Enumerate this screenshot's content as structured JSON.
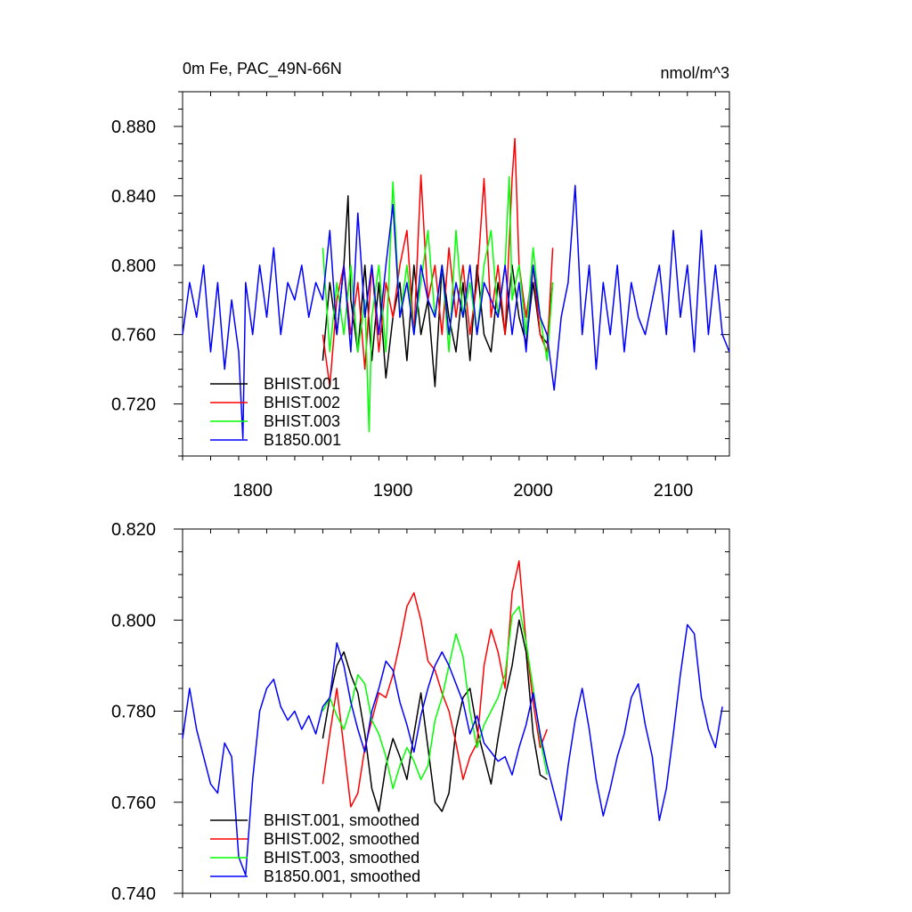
{
  "chart_data": [
    {
      "type": "line",
      "title": "0m Fe, PAC_49N-66N",
      "units": "nmol/m^3",
      "xlabel": "",
      "ylabel": "",
      "xlim": [
        1750,
        2140
      ],
      "ylim": [
        0.69,
        0.9
      ],
      "x_ticks": [
        1800,
        1900,
        2000,
        2100
      ],
      "y_ticks": [
        0.72,
        0.76,
        0.8,
        0.84,
        0.88
      ],
      "y_tick_labels": [
        "0.720",
        "0.760",
        "0.800",
        "0.840",
        "0.880"
      ],
      "legend_position": "bottom-left",
      "series": [
        {
          "name": "BHIST.001",
          "color": "#000000",
          "x": [
            1850,
            1855,
            1860,
            1865,
            1868,
            1870,
            1875,
            1880,
            1885,
            1890,
            1895,
            1900,
            1905,
            1910,
            1915,
            1920,
            1925,
            1930,
            1935,
            1940,
            1945,
            1950,
            1955,
            1960,
            1965,
            1970,
            1975,
            1980,
            1985,
            1990,
            1995,
            2000,
            2005,
            2010,
            2014
          ],
          "y": [
            0.745,
            0.79,
            0.76,
            0.8,
            0.84,
            0.78,
            0.75,
            0.8,
            0.745,
            0.79,
            0.735,
            0.77,
            0.79,
            0.745,
            0.8,
            0.76,
            0.78,
            0.73,
            0.8,
            0.77,
            0.75,
            0.79,
            0.745,
            0.8,
            0.76,
            0.75,
            0.79,
            0.76,
            0.8,
            0.77,
            0.755,
            0.79,
            0.76,
            0.755,
            0.79
          ]
        },
        {
          "name": "BHIST.002",
          "color": "#ff0000",
          "x": [
            1850,
            1855,
            1860,
            1865,
            1870,
            1875,
            1880,
            1885,
            1890,
            1895,
            1900,
            1905,
            1910,
            1915,
            1920,
            1925,
            1930,
            1935,
            1940,
            1945,
            1950,
            1955,
            1960,
            1965,
            1970,
            1975,
            1980,
            1985,
            1987,
            1990,
            1995,
            2000,
            2005,
            2010,
            2014
          ],
          "y": [
            0.76,
            0.73,
            0.78,
            0.8,
            0.76,
            0.79,
            0.74,
            0.8,
            0.75,
            0.79,
            0.77,
            0.8,
            0.82,
            0.76,
            0.852,
            0.78,
            0.8,
            0.76,
            0.81,
            0.77,
            0.8,
            0.76,
            0.79,
            0.85,
            0.77,
            0.8,
            0.76,
            0.85,
            0.873,
            0.8,
            0.77,
            0.8,
            0.76,
            0.75,
            0.81
          ]
        },
        {
          "name": "BHIST.003",
          "color": "#00ff00",
          "x": [
            1850,
            1855,
            1860,
            1865,
            1870,
            1875,
            1880,
            1883,
            1885,
            1890,
            1895,
            1900,
            1905,
            1910,
            1915,
            1920,
            1925,
            1930,
            1935,
            1940,
            1945,
            1950,
            1955,
            1960,
            1965,
            1970,
            1975,
            1980,
            1983,
            1985,
            1990,
            1995,
            2000,
            2005,
            2010,
            2014
          ],
          "y": [
            0.81,
            0.75,
            0.79,
            0.76,
            0.8,
            0.75,
            0.78,
            0.704,
            0.77,
            0.8,
            0.75,
            0.848,
            0.77,
            0.8,
            0.76,
            0.79,
            0.82,
            0.77,
            0.8,
            0.75,
            0.82,
            0.77,
            0.79,
            0.76,
            0.8,
            0.82,
            0.77,
            0.8,
            0.851,
            0.78,
            0.8,
            0.76,
            0.81,
            0.77,
            0.745,
            0.79
          ]
        },
        {
          "name": "B1850.001",
          "color": "#0000ff",
          "x": [
            1750,
            1755,
            1760,
            1765,
            1770,
            1775,
            1780,
            1785,
            1790,
            1793,
            1795,
            1800,
            1805,
            1810,
            1815,
            1820,
            1825,
            1830,
            1835,
            1840,
            1845,
            1850,
            1855,
            1860,
            1865,
            1870,
            1875,
            1880,
            1885,
            1890,
            1895,
            1900,
            1905,
            1910,
            1915,
            1920,
            1925,
            1930,
            1935,
            1940,
            1945,
            1950,
            1955,
            1960,
            1965,
            1970,
            1975,
            1980,
            1985,
            1990,
            1995,
            2000,
            2005,
            2010,
            2015,
            2020,
            2025,
            2030,
            2035,
            2040,
            2045,
            2050,
            2055,
            2060,
            2065,
            2070,
            2075,
            2080,
            2085,
            2090,
            2095,
            2100,
            2105,
            2110,
            2115,
            2120,
            2125,
            2130,
            2135,
            2140
          ],
          "y": [
            0.76,
            0.79,
            0.77,
            0.8,
            0.75,
            0.79,
            0.74,
            0.78,
            0.75,
            0.7,
            0.79,
            0.76,
            0.8,
            0.77,
            0.81,
            0.76,
            0.79,
            0.78,
            0.8,
            0.77,
            0.79,
            0.78,
            0.82,
            0.76,
            0.8,
            0.75,
            0.83,
            0.77,
            0.8,
            0.76,
            0.8,
            0.835,
            0.77,
            0.79,
            0.76,
            0.8,
            0.78,
            0.77,
            0.8,
            0.76,
            0.79,
            0.77,
            0.8,
            0.76,
            0.79,
            0.78,
            0.77,
            0.8,
            0.76,
            0.79,
            0.75,
            0.8,
            0.77,
            0.76,
            0.728,
            0.77,
            0.79,
            0.846,
            0.76,
            0.8,
            0.74,
            0.79,
            0.76,
            0.8,
            0.75,
            0.79,
            0.77,
            0.76,
            0.78,
            0.8,
            0.76,
            0.82,
            0.77,
            0.8,
            0.75,
            0.82,
            0.76,
            0.8,
            0.76,
            0.75
          ]
        }
      ]
    },
    {
      "type": "line",
      "title": "",
      "xlabel": "",
      "ylabel": "",
      "xlim": [
        1750,
        2140
      ],
      "ylim": [
        0.74,
        0.82
      ],
      "x_ticks": [
        1800,
        1900,
        2000,
        2100
      ],
      "y_ticks": [
        0.74,
        0.76,
        0.78,
        0.8,
        0.82
      ],
      "y_tick_labels": [
        "0.740",
        "0.760",
        "0.780",
        "0.800",
        "0.820"
      ],
      "legend_position": "bottom-left",
      "series": [
        {
          "name": "BHIST.001, smoothed",
          "color": "#000000",
          "x": [
            1850,
            1855,
            1860,
            1865,
            1870,
            1875,
            1880,
            1885,
            1890,
            1895,
            1900,
            1905,
            1910,
            1915,
            1920,
            1925,
            1930,
            1935,
            1940,
            1945,
            1950,
            1955,
            1960,
            1965,
            1970,
            1975,
            1980,
            1985,
            1990,
            1995,
            2000,
            2005,
            2010
          ],
          "y": [
            0.774,
            0.783,
            0.79,
            0.793,
            0.788,
            0.784,
            0.775,
            0.763,
            0.758,
            0.768,
            0.774,
            0.77,
            0.765,
            0.775,
            0.784,
            0.772,
            0.76,
            0.758,
            0.762,
            0.776,
            0.783,
            0.785,
            0.776,
            0.77,
            0.764,
            0.774,
            0.783,
            0.79,
            0.8,
            0.793,
            0.775,
            0.766,
            0.765
          ]
        },
        {
          "name": "BHIST.002, smoothed",
          "color": "#ff0000",
          "x": [
            1850,
            1855,
            1860,
            1865,
            1870,
            1875,
            1880,
            1885,
            1890,
            1895,
            1900,
            1905,
            1910,
            1915,
            1920,
            1925,
            1930,
            1935,
            1940,
            1945,
            1950,
            1955,
            1960,
            1965,
            1970,
            1975,
            1980,
            1985,
            1990,
            1995,
            2000,
            2005,
            2010
          ],
          "y": [
            0.764,
            0.775,
            0.785,
            0.772,
            0.759,
            0.762,
            0.772,
            0.778,
            0.784,
            0.783,
            0.788,
            0.795,
            0.803,
            0.806,
            0.8,
            0.791,
            0.789,
            0.784,
            0.78,
            0.773,
            0.765,
            0.77,
            0.773,
            0.79,
            0.798,
            0.793,
            0.785,
            0.806,
            0.813,
            0.795,
            0.782,
            0.772,
            0.776
          ]
        },
        {
          "name": "BHIST.003, smoothed",
          "color": "#00ff00",
          "x": [
            1850,
            1855,
            1860,
            1865,
            1870,
            1875,
            1880,
            1885,
            1890,
            1895,
            1900,
            1905,
            1910,
            1915,
            1920,
            1925,
            1930,
            1935,
            1940,
            1945,
            1950,
            1955,
            1960,
            1965,
            1970,
            1975,
            1980,
            1985,
            1990,
            1995,
            2000,
            2005,
            2010
          ],
          "y": [
            0.78,
            0.783,
            0.779,
            0.776,
            0.781,
            0.788,
            0.786,
            0.778,
            0.775,
            0.77,
            0.763,
            0.768,
            0.772,
            0.769,
            0.765,
            0.768,
            0.778,
            0.783,
            0.79,
            0.797,
            0.792,
            0.78,
            0.772,
            0.777,
            0.78,
            0.783,
            0.788,
            0.801,
            0.803,
            0.795,
            0.785,
            0.774,
            0.766
          ]
        },
        {
          "name": "B1850.001, smoothed",
          "color": "#0000ff",
          "x": [
            1750,
            1755,
            1760,
            1765,
            1770,
            1775,
            1780,
            1785,
            1790,
            1795,
            1800,
            1805,
            1810,
            1815,
            1820,
            1825,
            1830,
            1835,
            1840,
            1845,
            1850,
            1855,
            1860,
            1865,
            1870,
            1875,
            1880,
            1885,
            1890,
            1895,
            1900,
            1905,
            1910,
            1915,
            1920,
            1925,
            1930,
            1935,
            1940,
            1945,
            1950,
            1955,
            1960,
            1965,
            1970,
            1975,
            1980,
            1985,
            1990,
            1995,
            2000,
            2005,
            2010,
            2015,
            2020,
            2025,
            2030,
            2035,
            2040,
            2045,
            2050,
            2055,
            2060,
            2065,
            2070,
            2075,
            2080,
            2085,
            2090,
            2095,
            2100,
            2105,
            2110,
            2115,
            2120,
            2125,
            2130,
            2135
          ],
          "y": [
            0.774,
            0.785,
            0.776,
            0.77,
            0.764,
            0.762,
            0.773,
            0.77,
            0.748,
            0.744,
            0.765,
            0.78,
            0.785,
            0.787,
            0.781,
            0.778,
            0.78,
            0.776,
            0.779,
            0.775,
            0.781,
            0.783,
            0.795,
            0.79,
            0.782,
            0.776,
            0.771,
            0.78,
            0.785,
            0.791,
            0.789,
            0.782,
            0.777,
            0.771,
            0.779,
            0.785,
            0.79,
            0.793,
            0.79,
            0.786,
            0.782,
            0.775,
            0.779,
            0.773,
            0.771,
            0.769,
            0.77,
            0.766,
            0.772,
            0.777,
            0.784,
            0.775,
            0.768,
            0.762,
            0.756,
            0.768,
            0.778,
            0.785,
            0.776,
            0.765,
            0.757,
            0.763,
            0.77,
            0.775,
            0.783,
            0.786,
            0.777,
            0.77,
            0.756,
            0.763,
            0.775,
            0.788,
            0.799,
            0.797,
            0.783,
            0.776,
            0.772,
            0.781
          ]
        }
      ]
    }
  ]
}
